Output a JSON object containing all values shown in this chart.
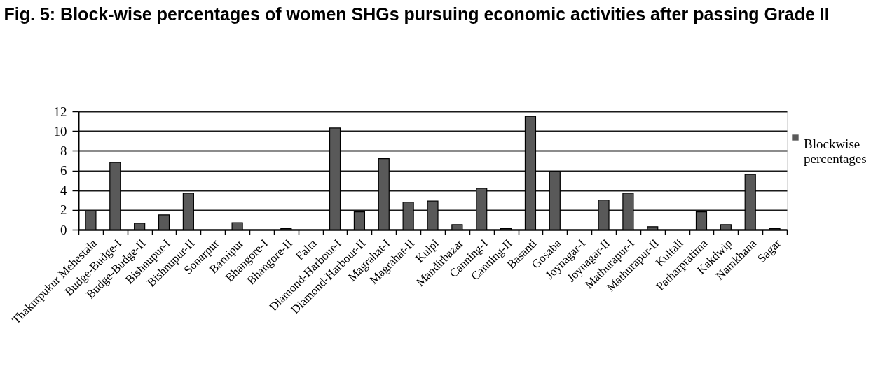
{
  "chart_data": {
    "type": "bar",
    "title": "Fig. 5: Block-wise percentages of women SHGs pursuing economic activities after passing Grade II",
    "categories": [
      "Thakurpukur Mehestala",
      "Budge-Budge-I",
      "Budge-Budge-II",
      "Bishnupur-I",
      "Bishnupur-II",
      "Sonarpur",
      "Baruipur",
      "Bhangore-I",
      "Bhangore-II",
      "Falta",
      "Diamond-Harbour-I",
      "Diamond-Harbour-II",
      "Magrahat-I",
      "Magrahat-II",
      "Kulpi",
      "Mandirbazar",
      "Canning-I",
      "Canning-II",
      "Basanti",
      "Gosaba",
      "Joynagar-I",
      "Joynagar-II",
      "Mathurapur-I",
      "Mathurapur-II",
      "Kultali",
      "Patharpratima",
      "Kakdwip",
      "Namkhana",
      "Sagar"
    ],
    "series": [
      {
        "name": "Blockwise percentages",
        "color": "#595959",
        "values": [
          1.9,
          6.8,
          0.65,
          1.5,
          3.7,
          0,
          0.7,
          0,
          0.1,
          0,
          10.3,
          1.8,
          7.2,
          2.8,
          2.9,
          0.5,
          4.2,
          0.1,
          11.5,
          5.9,
          0,
          3.0,
          3.7,
          0.3,
          0,
          1.8,
          0.5,
          5.6,
          0.1
        ]
      }
    ],
    "ylim": [
      0,
      12
    ],
    "yticks": [
      0,
      2,
      4,
      6,
      8,
      10,
      12
    ],
    "grid": "y",
    "legend": "right"
  }
}
